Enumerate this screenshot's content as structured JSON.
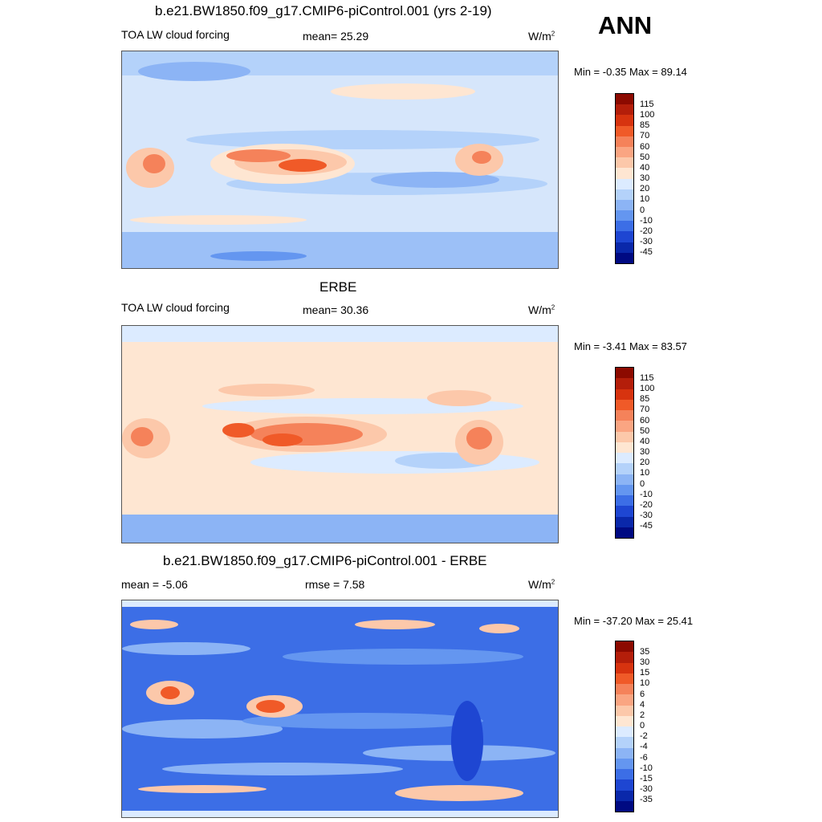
{
  "season": "ANN",
  "panels": [
    {
      "title": "b.e21.BW1850.f09_g17.CMIP6-piControl.001 (yrs 2-19)",
      "left_label": "TOA LW cloud forcing",
      "center_label": "mean=  25.29",
      "units": "W/m",
      "units_sup": "2",
      "minmax": "Min =  -0.35 Max =  89.14",
      "colorbar_labels": [
        "115",
        "100",
        "85",
        "70",
        "60",
        "50",
        "40",
        "30",
        "20",
        "10",
        "0",
        "-10",
        "-20",
        "-30",
        "-45"
      ]
    },
    {
      "title": "ERBE",
      "left_label": "TOA LW cloud forcing",
      "center_label": "mean=  30.36",
      "units": "W/m",
      "units_sup": "2",
      "minmax": "Min =  -3.41 Max =  83.57",
      "colorbar_labels": [
        "115",
        "100",
        "85",
        "70",
        "60",
        "50",
        "40",
        "30",
        "20",
        "10",
        "0",
        "-10",
        "-20",
        "-30",
        "-45"
      ]
    },
    {
      "title": "b.e21.BW1850.f09_g17.CMIP6-piControl.001 - ERBE",
      "left_label": "mean =  -5.06",
      "center_label": "rmse =   7.58",
      "units": "W/m",
      "units_sup": "2",
      "minmax": "Min = -37.20 Max =  25.41",
      "colorbar_labels": [
        "35",
        "30",
        "15",
        "10",
        "6",
        "4",
        "2",
        "0",
        "-2",
        "-4",
        "-6",
        "-10",
        "-15",
        "-30",
        "-35"
      ]
    }
  ],
  "colors": {
    "scale_abs": [
      "#8c0a00",
      "#b41e0a",
      "#d7330f",
      "#f05a28",
      "#f5825a",
      "#faa582",
      "#fcc8aa",
      "#fee6d2",
      "#dcebff",
      "#b4d2fa",
      "#8cb4f5",
      "#6496f0",
      "#3c6ee6",
      "#1e46d2",
      "#0a28aa",
      "#000a82"
    ],
    "scale_diff": [
      "#8c0a00",
      "#b41e0a",
      "#d7330f",
      "#f05a28",
      "#f5825a",
      "#faa582",
      "#fcc8aa",
      "#fee6d2",
      "#dcebff",
      "#b4d2fa",
      "#8cb4f5",
      "#6496f0",
      "#3c6ee6",
      "#1e46d2",
      "#0a28aa",
      "#000a82"
    ]
  },
  "chart_data": [
    {
      "type": "heatmap",
      "title": "b.e21.BW1850.f09_g17.CMIP6-piControl.001 (yrs 2-19)",
      "variable": "TOA LW cloud forcing",
      "units": "W/m2",
      "mean": 25.29,
      "min": -0.35,
      "max": 89.14,
      "levels": [
        -45,
        -30,
        -20,
        -10,
        0,
        10,
        20,
        30,
        40,
        50,
        60,
        70,
        85,
        100,
        115
      ]
    },
    {
      "type": "heatmap",
      "title": "ERBE",
      "variable": "TOA LW cloud forcing",
      "units": "W/m2",
      "mean": 30.36,
      "min": -3.41,
      "max": 83.57,
      "levels": [
        -45,
        -30,
        -20,
        -10,
        0,
        10,
        20,
        30,
        40,
        50,
        60,
        70,
        85,
        100,
        115
      ]
    },
    {
      "type": "heatmap",
      "title": "b.e21.BW1850.f09_g17.CMIP6-piControl.001 - ERBE",
      "units": "W/m2",
      "mean": -5.06,
      "rmse": 7.58,
      "min": -37.2,
      "max": 25.41,
      "levels": [
        -35,
        -30,
        -15,
        -10,
        -6,
        -4,
        -2,
        0,
        2,
        4,
        6,
        10,
        15,
        30,
        35
      ]
    }
  ]
}
